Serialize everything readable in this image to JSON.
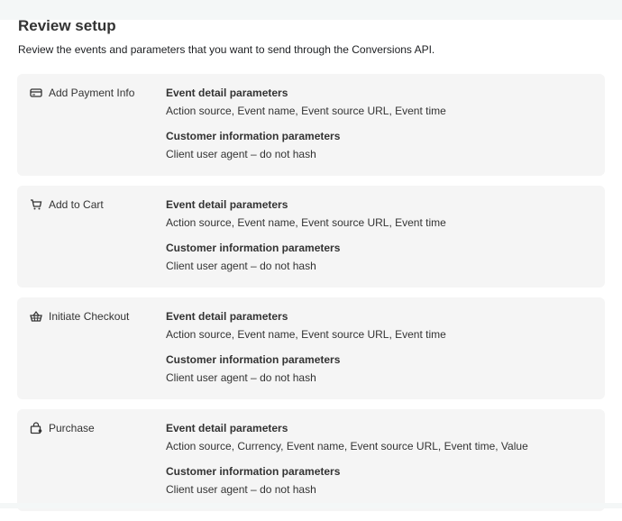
{
  "title": "Review setup",
  "subtitle": "Review the events and parameters that you want to send through the Conversions API.",
  "events": [
    {
      "name": "Add Payment Info",
      "icon": "credit-card-icon",
      "detail_heading": "Event detail parameters",
      "detail_value": "Action source, Event name, Event source URL, Event time",
      "customer_heading": "Customer information parameters",
      "customer_value": "Client user agent – do not hash"
    },
    {
      "name": "Add to Cart",
      "icon": "cart-icon",
      "detail_heading": "Event detail parameters",
      "detail_value": "Action source, Event name, Event source URL, Event time",
      "customer_heading": "Customer information parameters",
      "customer_value": "Client user agent – do not hash"
    },
    {
      "name": "Initiate Checkout",
      "icon": "basket-icon",
      "detail_heading": "Event detail parameters",
      "detail_value": "Action source, Event name, Event source URL, Event time",
      "customer_heading": "Customer information parameters",
      "customer_value": "Client user agent – do not hash"
    },
    {
      "name": "Purchase",
      "icon": "shopping-bag-icon",
      "detail_heading": "Event detail parameters",
      "detail_value": "Action source, Currency, Event name, Event source URL, Event time, Value",
      "customer_heading": "Customer information parameters",
      "customer_value": "Client user agent – do not hash"
    }
  ]
}
